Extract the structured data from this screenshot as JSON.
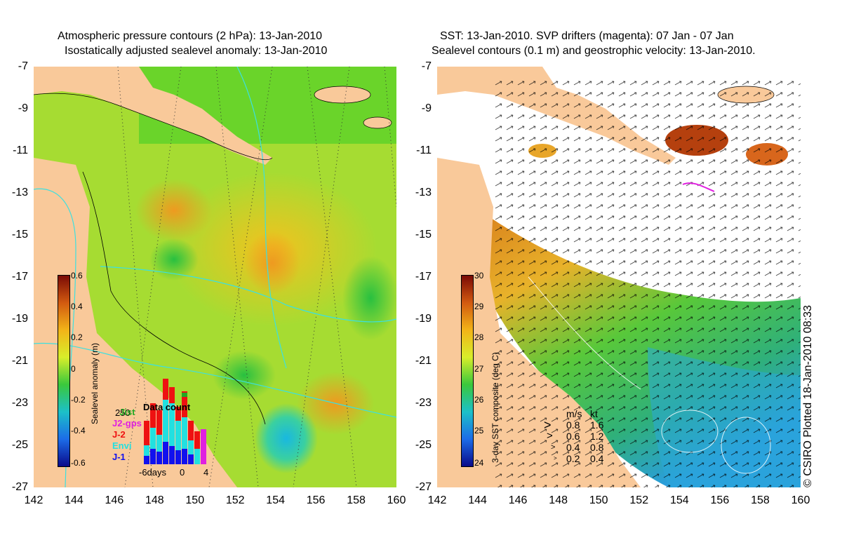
{
  "left_panel": {
    "title_line1": "Atmospheric pressure contours (2 hPa): 13-Jan-2010",
    "title_line2": "Isostatically adjusted sealevel anomaly: 13-Jan-2010",
    "colorbar": {
      "label": "Sealevel anomaly (m)",
      "ticks": [
        "0.6",
        "0.4",
        "0.2",
        "0",
        "-0.2",
        "-0.4",
        "-0.6"
      ],
      "colors": [
        "#7a0a05",
        "#d25a10",
        "#f2b418",
        "#d8ee2a",
        "#3ac83c",
        "#1cc0c8",
        "#1c6ce8",
        "#0a0a8a"
      ]
    },
    "inset": {
      "title": "Data count",
      "max_label": "250",
      "x_ticks": [
        "-6days",
        "0",
        "4"
      ],
      "legend": [
        {
          "label": "Gfo",
          "color": "#22aa22"
        },
        {
          "label": "Jist",
          "color": "#22aa22"
        },
        {
          "label": "J2-gps",
          "color": "#e020e0"
        },
        {
          "label": "J-2",
          "color": "#ee1111"
        },
        {
          "label": "Envi",
          "color": "#22e0e0"
        },
        {
          "label": "J-1",
          "color": "#1111ee"
        }
      ]
    }
  },
  "right_panel": {
    "title_line1": "SST: 13-Jan-2010. SVP drifters (magenta): 07 Jan - 07 Jan",
    "title_line2": "Sealevel contours (0.1 m) and geostrophic velocity: 13-Jan-2010.",
    "colorbar": {
      "label": "3-day SST composite (deg C)",
      "ticks": [
        "30",
        "29",
        "28",
        "27",
        "26",
        "25",
        "24"
      ],
      "colors": [
        "#7a0a05",
        "#d25a10",
        "#f2b418",
        "#d8ee2a",
        "#3ac83c",
        "#1cc0c8",
        "#1c6ce8",
        "#0a0a8a"
      ]
    },
    "speed_legend": {
      "header_ms": "m/s",
      "header_kt": "kt",
      "rows": [
        {
          "ms": "0.8",
          "kt": "1.6"
        },
        {
          "ms": "0.6",
          "kt": "1.2"
        },
        {
          "ms": "0.4",
          "kt": "0.8"
        },
        {
          "ms": "0.2",
          "kt": "0.4"
        }
      ]
    }
  },
  "axes": {
    "y_ticks": [
      "-7",
      "-9",
      "-11",
      "-13",
      "-15",
      "-17",
      "-19",
      "-21",
      "-23",
      "-25",
      "-27"
    ],
    "x_ticks": [
      "142",
      "144",
      "146",
      "148",
      "150",
      "152",
      "154",
      "156",
      "158",
      "160"
    ]
  },
  "copyright": "© CSIRO Plotted 18-Jan-2010 08:33",
  "colors": {
    "land": "#f9c99a",
    "ocean_mid": "#8fd33a",
    "cloud": "#ffffff"
  }
}
